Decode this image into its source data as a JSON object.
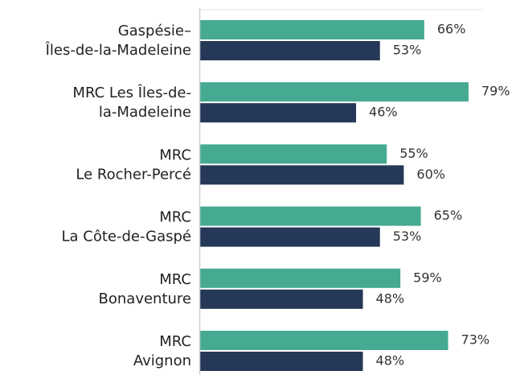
{
  "chart_data": {
    "type": "barh",
    "categories": [
      [
        "Gaspésie–",
        "Îles-de-la-Madeleine"
      ],
      [
        "MRC Les Îles-de-",
        "la-Madeleine"
      ],
      [
        "MRC",
        "Le Rocher-Percé"
      ],
      [
        "MRC",
        "La Côte-de-Gaspé"
      ],
      [
        "MRC",
        "Bonaventure"
      ],
      [
        "MRC",
        "Avignon"
      ]
    ],
    "series": [
      {
        "color": "#46aa92",
        "values": [
          66,
          79,
          55,
          65,
          59,
          73
        ],
        "value_labels": [
          "66%",
          "79%",
          "55%",
          "65%",
          "59%",
          "73%"
        ]
      },
      {
        "color": "#253858",
        "values": [
          53,
          46,
          60,
          53,
          48,
          48
        ],
        "value_labels": [
          "53%",
          "46%",
          "60%",
          "53%",
          "48%",
          "48%"
        ]
      }
    ],
    "xlim": [
      0,
      100
    ]
  }
}
